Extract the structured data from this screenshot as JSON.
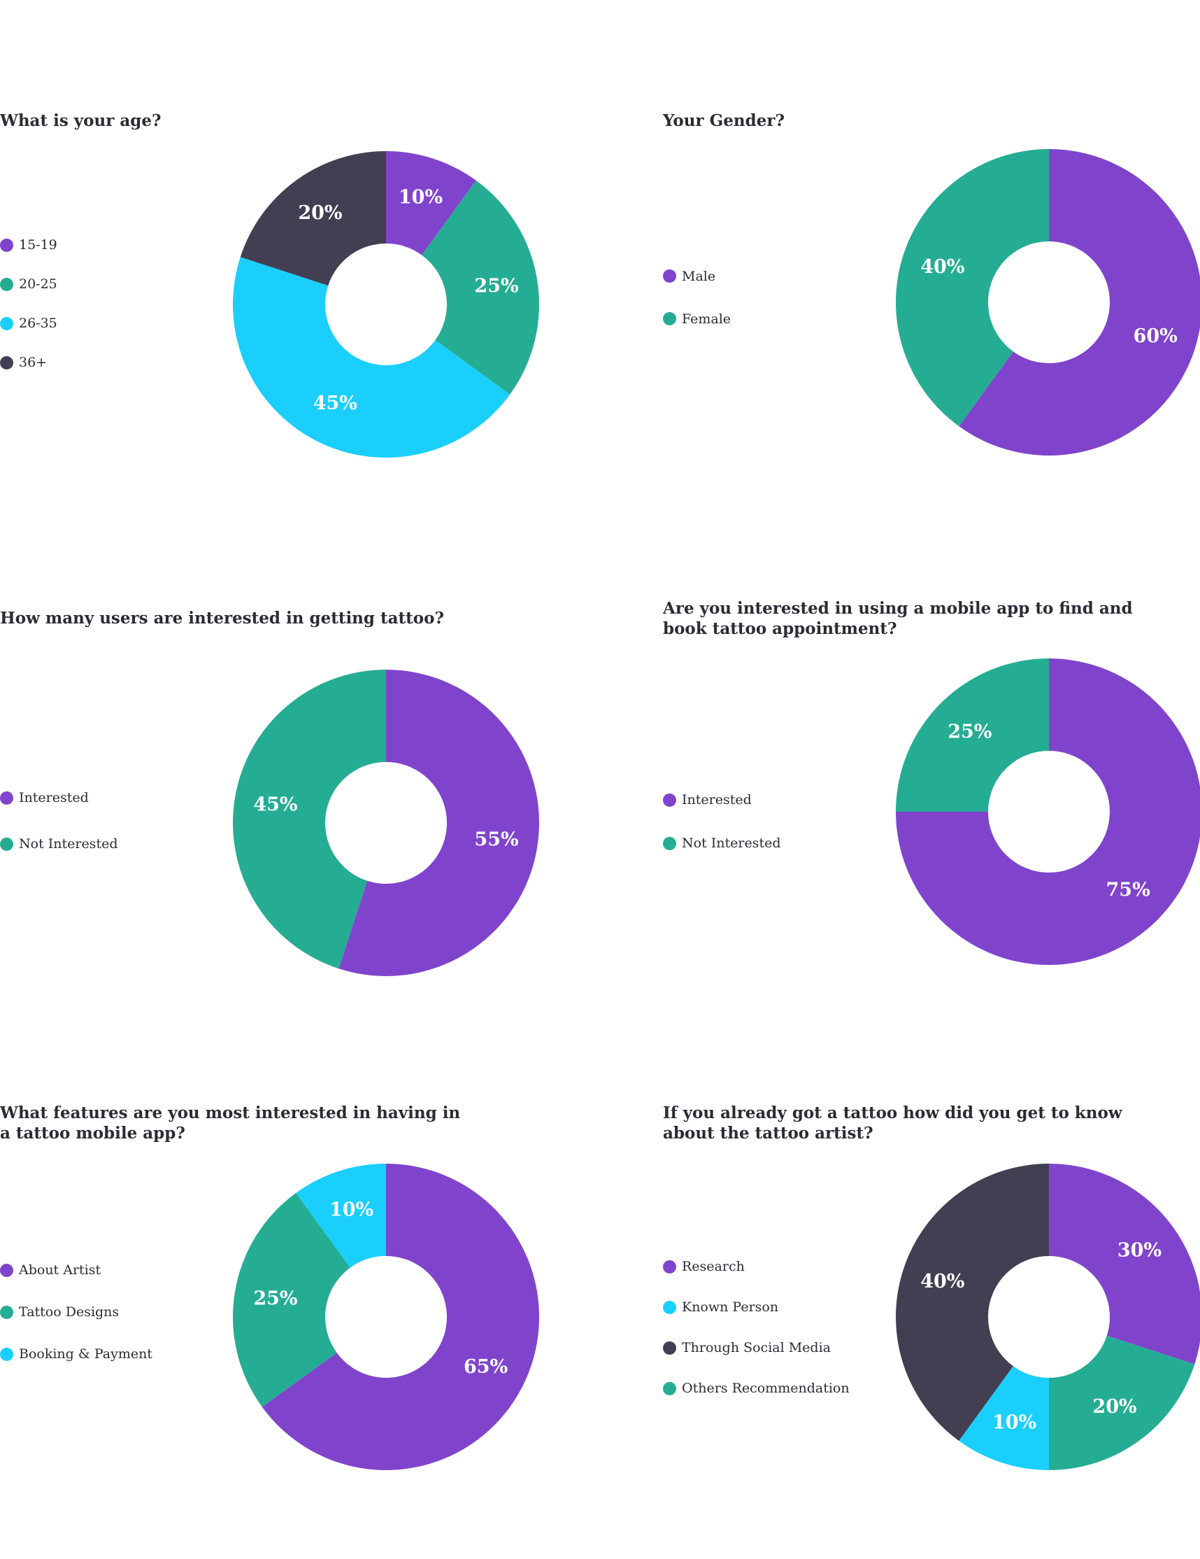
{
  "colors": {
    "purple": "#8044cc",
    "teal": "#25ad94",
    "cyan": "#1acffc",
    "dark": "#433f52",
    "text": "#2b2b35"
  },
  "chart_data": [
    {
      "type": "pie",
      "title": "What is your age?",
      "categories": [
        "15-19",
        "20-25",
        "26-35",
        "36+"
      ],
      "values": [
        10,
        25,
        45,
        20
      ],
      "labels": [
        "10%",
        "25%",
        "45%",
        "20%"
      ],
      "colors": [
        "#8044cc",
        "#25ad94",
        "#1acffc",
        "#433f52"
      ],
      "legend_placement": "left"
    },
    {
      "type": "pie",
      "title": "Your Gender?",
      "categories": [
        "Male",
        "Female"
      ],
      "values": [
        60,
        40
      ],
      "labels": [
        "60%",
        "40%"
      ],
      "colors": [
        "#8044cc",
        "#25ad94"
      ],
      "legend_placement": "left"
    },
    {
      "type": "pie",
      "title": "How many users are interested in getting tattoo?",
      "categories": [
        "Interested",
        "Not Interested"
      ],
      "values": [
        55,
        45
      ],
      "labels": [
        "55%",
        "45%"
      ],
      "colors": [
        "#8044cc",
        "#25ad94"
      ],
      "legend_placement": "left"
    },
    {
      "type": "pie",
      "title": "Are you interested in using a mobile app to find and book tattoo appointment?",
      "categories": [
        "Interested",
        "Not Interested"
      ],
      "values": [
        75,
        25
      ],
      "labels": [
        "75%",
        "25%"
      ],
      "colors": [
        "#8044cc",
        "#25ad94"
      ],
      "legend_placement": "left"
    },
    {
      "type": "pie",
      "title": "What features are you most interested in having in a tattoo mobile app?",
      "categories": [
        "About Artist",
        "Tattoo Designs",
        "Booking & Payment"
      ],
      "values": [
        65,
        25,
        10
      ],
      "labels": [
        "65%",
        "25%",
        "10%"
      ],
      "colors": [
        "#8044cc",
        "#25ad94",
        "#1acffc"
      ],
      "legend_placement": "left"
    },
    {
      "type": "pie",
      "title": "If you already got a tattoo how did you get to know about the tattoo artist?",
      "categories": [
        "Research",
        "Others Recommendation",
        "Known Person",
        "Through Social Media"
      ],
      "values": [
        30,
        20,
        10,
        40
      ],
      "labels": [
        "30%",
        "20%",
        "10%",
        "40%"
      ],
      "colors": [
        "#8044cc",
        "#25ad94",
        "#1acffc",
        "#433f52"
      ],
      "legend_order": [
        0,
        2,
        3,
        1
      ],
      "legend_placement": "left"
    }
  ]
}
